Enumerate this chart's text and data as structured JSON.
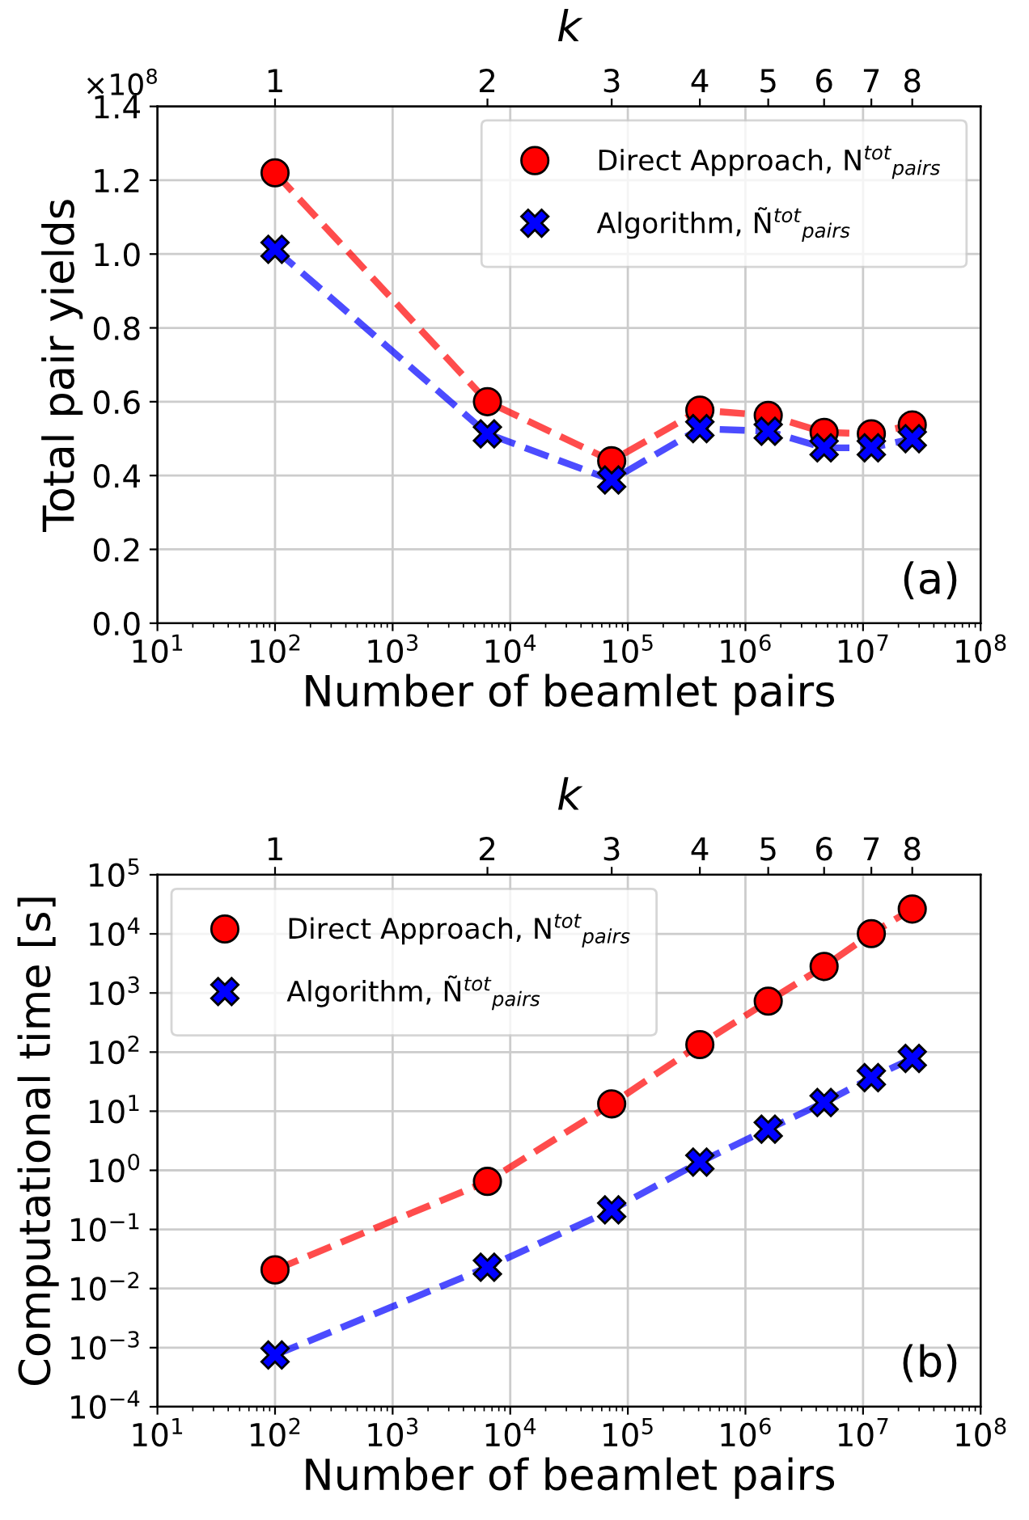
{
  "chart_data": [
    {
      "type": "line",
      "xlabel": "Number of beamlet pairs",
      "ylabel": "Total pair yields",
      "x2label": "k",
      "x": [
        100,
        6400,
        72900,
        409600,
        1562500,
        4665600,
        11764900,
        26214400
      ],
      "series": [
        {
          "name": "Direct Approach, N$^{tot}$$_{pairs}$",
          "color": "#ff0000",
          "marker": "circle",
          "values": [
            1.22,
            0.6,
            0.44,
            0.577,
            0.563,
            0.517,
            0.513,
            0.537
          ]
        },
        {
          "name": "Algorithm, Ñ$^{tot}$$_{pairs}$",
          "color": "#0000ff",
          "marker": "cross",
          "values": [
            1.013,
            0.513,
            0.388,
            0.527,
            0.52,
            0.475,
            0.475,
            0.5
          ]
        }
      ],
      "log": "x",
      "line_style": "dashed",
      "grid": true,
      "legend": "top right",
      "xlim": [
        10,
        100000000.0
      ],
      "xticks": [
        {
          "value": 10,
          "label": "10$^{1}$"
        },
        {
          "value": 100,
          "label": "10$^{2}$"
        },
        {
          "value": 1000,
          "label": "10$^{3}$"
        },
        {
          "value": 10000,
          "label": "10$^{4}$"
        },
        {
          "value": 100000,
          "label": "10$^{5}$"
        },
        {
          "value": 1000000,
          "label": "10$^{6}$"
        },
        {
          "value": 10000000,
          "label": "10$^{7}$"
        },
        {
          "value": 100000000,
          "label": "10$^{8}$"
        }
      ],
      "ylim": [
        0,
        1.4
      ],
      "yticks": [
        {
          "value": 0,
          "label": "0.0"
        },
        0.2,
        0.4,
        0.6,
        0.8,
        {
          "value": 1,
          "label": "1.0"
        },
        1.2,
        1.4
      ],
      "annotations": [
        "×10$^{8}$",
        "(a)",
        {
          "text": "1",
          "x": 100
        },
        {
          "text": "2",
          "x": 6400
        },
        {
          "text": "3",
          "x": 72900
        },
        {
          "text": "4",
          "x": 409600
        },
        {
          "text": "5",
          "x": 1562500
        },
        {
          "text": "6",
          "x": 4665600
        },
        {
          "text": "7",
          "x": 11764900
        },
        {
          "text": "8",
          "x": 26214400
        }
      ]
    },
    {
      "type": "line",
      "xlabel": "Number of beamlet pairs",
      "ylabel": "Computational time [s]",
      "x2label": "k",
      "x": [
        100,
        6400,
        72900,
        409600,
        1562500,
        4665600,
        11764900,
        26214400
      ],
      "series": [
        {
          "name": "Direct Approach, N$^{tot}$$_{pairs}$",
          "color": "#ff0000",
          "marker": "circle",
          "values": [
            0.0207,
            0.65,
            13.3,
            134,
            728,
            2810,
            10100,
            26300
          ]
        },
        {
          "name": "Algorithm, Ñ$^{tot}$$_{pairs}$",
          "color": "#0000ff",
          "marker": "cross",
          "values": [
            0.00075,
            0.0229,
            0.214,
            1.38,
            4.97,
            14,
            37,
            78
          ]
        }
      ],
      "log": "xy",
      "line_style": "dashed",
      "grid": true,
      "legend": "top left",
      "xlim": [
        10,
        100000000.0
      ],
      "xticks": [
        {
          "value": 10,
          "label": "10$^{1}$"
        },
        {
          "value": 100,
          "label": "10$^{2}$"
        },
        {
          "value": 1000,
          "label": "10$^{3}$"
        },
        {
          "value": 10000,
          "label": "10$^{4}$"
        },
        {
          "value": 100000,
          "label": "10$^{5}$"
        },
        {
          "value": 1000000,
          "label": "10$^{6}$"
        },
        {
          "value": 10000000,
          "label": "10$^{7}$"
        },
        {
          "value": 100000000,
          "label": "10$^{8}$"
        }
      ],
      "ylim": [
        0.0001,
        100000
      ],
      "yticks": [
        {
          "value": 0.0001,
          "label": "10$^{−4}$"
        },
        {
          "value": 0.001,
          "label": "10$^{−3}$"
        },
        {
          "value": 0.01,
          "label": "10$^{−2}$"
        },
        {
          "value": 0.1,
          "label": "10$^{−1}$"
        },
        {
          "value": 1,
          "label": "10$^{0}$"
        },
        {
          "value": 10,
          "label": "10$^{1}$"
        },
        {
          "value": 100,
          "label": "10$^{2}$"
        },
        {
          "value": 1000,
          "label": "10$^{3}$"
        },
        {
          "value": 10000,
          "label": "10$^{4}$"
        },
        {
          "value": 100000,
          "label": "10$^{5}$"
        }
      ],
      "annotations": [
        "(b)",
        {
          "text": "1",
          "x": 100
        },
        {
          "text": "2",
          "x": 6400
        },
        {
          "text": "3",
          "x": 72900
        },
        {
          "text": "4",
          "x": 409600
        },
        {
          "text": "5",
          "x": 1562500
        },
        {
          "text": "6",
          "x": 4665600
        },
        {
          "text": "7",
          "x": 11764900
        },
        {
          "text": "8",
          "x": 26214400
        }
      ]
    }
  ]
}
